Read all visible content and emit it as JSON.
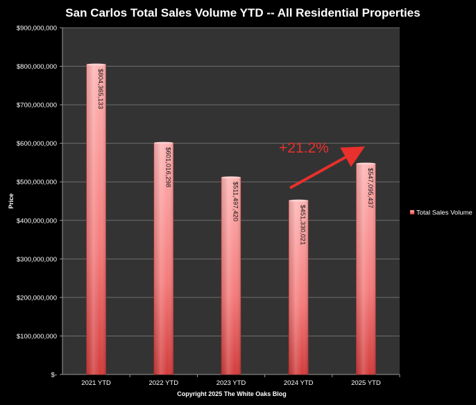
{
  "chart_data": {
    "type": "bar",
    "title": "San Carlos Total Sales Volume YTD -- All Residential Properties",
    "footer": "Copyright 2025 The White Oaks Blog",
    "ylabel": "Price",
    "xlabel": "",
    "categories": [
      "2021 YTD",
      "2022 YTD",
      "2023 YTD",
      "2024 YTD",
      "2025 YTD"
    ],
    "series": [
      {
        "name": "Total Sales Volume",
        "values": [
          804365133,
          601016298,
          511497420,
          451330021,
          547095437
        ],
        "labels": [
          "$804,365,133",
          "$601,016,298",
          "$511,497,420",
          "$451,330,021",
          "$547,095,437"
        ]
      }
    ],
    "ylim": [
      0,
      900000000
    ],
    "yticks": [
      0,
      100000000,
      200000000,
      300000000,
      400000000,
      500000000,
      600000000,
      700000000,
      800000000,
      900000000
    ],
    "ytick_labels": [
      "$-",
      "$100,000,000",
      "$200,000,000",
      "$300,000,000",
      "$400,000,000",
      "$500,000,000",
      "$600,000,000",
      "$700,000,000",
      "$800,000,000",
      "$900,000,000"
    ],
    "grid": true,
    "legend_position": "right",
    "annotation": {
      "text": "+21.2%",
      "from_category": "2024 YTD",
      "to_category": "2025 YTD"
    },
    "colors": {
      "background": "#000000",
      "plot_background": "#333333",
      "grid": "#6e6e6e",
      "bar_top": "#ffb3b3",
      "bar_bottom": "#d23c3c",
      "annotation": "#e8302c"
    }
  }
}
